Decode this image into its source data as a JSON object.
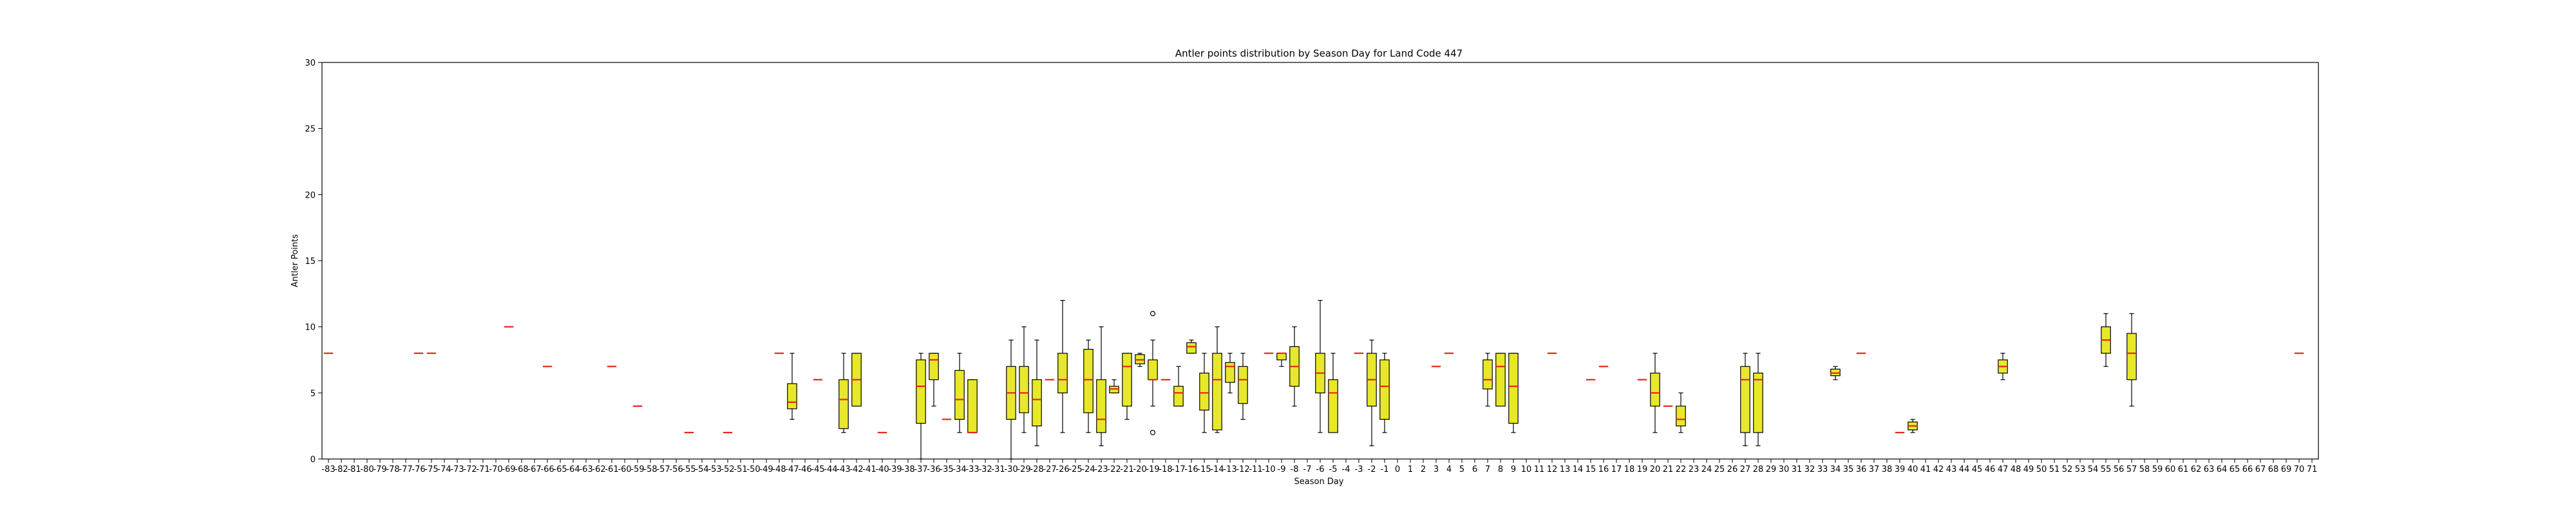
{
  "chart_data": {
    "type": "box",
    "title": "Antler points distribution by Season Day for Land Code 447",
    "xlabel": "Season Day",
    "ylabel": "Antler Points",
    "ylim": [
      0,
      30
    ],
    "yticks": [
      0,
      5,
      10,
      15,
      20,
      25,
      30
    ],
    "xmin": -83,
    "xmax": 71,
    "grid": false,
    "colors": {
      "box_fill": "#e8e82a",
      "median": "#e8251b",
      "edge": "#000000"
    },
    "boxes": [
      {
        "day": -83,
        "q1": 8,
        "med": 8,
        "q3": 8,
        "lo": 8,
        "hi": 8
      },
      {
        "day": -76,
        "q1": 8,
        "med": 8,
        "q3": 8,
        "lo": 8,
        "hi": 8
      },
      {
        "day": -75,
        "q1": 8,
        "med": 8,
        "q3": 8,
        "lo": 8,
        "hi": 8
      },
      {
        "day": -69,
        "q1": 10,
        "med": 10,
        "q3": 10,
        "lo": 10,
        "hi": 10
      },
      {
        "day": -66,
        "q1": 7,
        "med": 7,
        "q3": 7,
        "lo": 7,
        "hi": 7
      },
      {
        "day": -61,
        "q1": 7,
        "med": 7,
        "q3": 7,
        "lo": 7,
        "hi": 7
      },
      {
        "day": -59,
        "q1": 4,
        "med": 4,
        "q3": 4,
        "lo": 4,
        "hi": 4
      },
      {
        "day": -55,
        "q1": 2,
        "med": 2,
        "q3": 2,
        "lo": 2,
        "hi": 2
      },
      {
        "day": -52,
        "q1": 2,
        "med": 2,
        "q3": 2,
        "lo": 2,
        "hi": 2
      },
      {
        "day": -48,
        "q1": 8,
        "med": 8,
        "q3": 8,
        "lo": 8,
        "hi": 8
      },
      {
        "day": -47,
        "q1": 3.8,
        "med": 4.3,
        "q3": 5.7,
        "lo": 3,
        "hi": 8
      },
      {
        "day": -45,
        "q1": 6,
        "med": 6,
        "q3": 6,
        "lo": 6,
        "hi": 6
      },
      {
        "day": -43,
        "q1": 2.3,
        "med": 4.5,
        "q3": 6,
        "lo": 2,
        "hi": 8
      },
      {
        "day": -42,
        "q1": 4,
        "med": 6,
        "q3": 8,
        "lo": 4,
        "hi": 8
      },
      {
        "day": -40,
        "q1": 2,
        "med": 2,
        "q3": 2,
        "lo": 2,
        "hi": 2
      },
      {
        "day": -37,
        "q1": 2.7,
        "med": 5.5,
        "q3": 7.5,
        "lo": 0,
        "hi": 8
      },
      {
        "day": -36,
        "q1": 6,
        "med": 7.5,
        "q3": 8,
        "lo": 4,
        "hi": 8
      },
      {
        "day": -35,
        "q1": 3,
        "med": 3,
        "q3": 3,
        "lo": 3,
        "hi": 3
      },
      {
        "day": -34,
        "q1": 3,
        "med": 4.5,
        "q3": 6.7,
        "lo": 2,
        "hi": 8
      },
      {
        "day": -33,
        "q1": 2,
        "med": 2,
        "q3": 6,
        "lo": 2,
        "hi": 6
      },
      {
        "day": -30,
        "q1": 3,
        "med": 5,
        "q3": 7,
        "lo": 0,
        "hi": 9
      },
      {
        "day": -29,
        "q1": 3.5,
        "med": 5,
        "q3": 7,
        "lo": 2,
        "hi": 10
      },
      {
        "day": -28,
        "q1": 2.5,
        "med": 4.5,
        "q3": 6,
        "lo": 1,
        "hi": 9
      },
      {
        "day": -27,
        "q1": 6,
        "med": 6,
        "q3": 6,
        "lo": 6,
        "hi": 6
      },
      {
        "day": -26,
        "q1": 5,
        "med": 6,
        "q3": 8,
        "lo": 2,
        "hi": 12
      },
      {
        "day": -24,
        "q1": 3.5,
        "med": 6,
        "q3": 8.3,
        "lo": 2,
        "hi": 9
      },
      {
        "day": -23,
        "q1": 2,
        "med": 3,
        "q3": 6,
        "lo": 1,
        "hi": 10
      },
      {
        "day": -22,
        "q1": 5,
        "med": 5.3,
        "q3": 5.5,
        "lo": 5,
        "hi": 6
      },
      {
        "day": -21,
        "q1": 4,
        "med": 7,
        "q3": 8,
        "lo": 3,
        "hi": 8
      },
      {
        "day": -20,
        "q1": 7.2,
        "med": 7.5,
        "q3": 7.9,
        "lo": 7,
        "hi": 8
      },
      {
        "day": -19,
        "q1": 6,
        "med": 6,
        "q3": 7.5,
        "lo": 4,
        "hi": 9,
        "fliers": [
          11,
          2
        ]
      },
      {
        "day": -18,
        "q1": 6,
        "med": 6,
        "q3": 6,
        "lo": 6,
        "hi": 6
      },
      {
        "day": -17,
        "q1": 4,
        "med": 5,
        "q3": 5.5,
        "lo": 4,
        "hi": 7
      },
      {
        "day": -16,
        "q1": 8,
        "med": 8.5,
        "q3": 8.8,
        "lo": 8,
        "hi": 9
      },
      {
        "day": -15,
        "q1": 3.7,
        "med": 5,
        "q3": 6.5,
        "lo": 2,
        "hi": 8
      },
      {
        "day": -14,
        "q1": 2.2,
        "med": 6,
        "q3": 8,
        "lo": 2,
        "hi": 10
      },
      {
        "day": -13,
        "q1": 5.8,
        "med": 7,
        "q3": 7.3,
        "lo": 5,
        "hi": 8
      },
      {
        "day": -12,
        "q1": 4.2,
        "med": 6,
        "q3": 7,
        "lo": 3,
        "hi": 8
      },
      {
        "day": -10,
        "q1": 8,
        "med": 8,
        "q3": 8,
        "lo": 8,
        "hi": 8
      },
      {
        "day": -9,
        "q1": 7.5,
        "med": 8,
        "q3": 8,
        "lo": 7,
        "hi": 8
      },
      {
        "day": -8,
        "q1": 5.5,
        "med": 7,
        "q3": 8.5,
        "lo": 4,
        "hi": 10
      },
      {
        "day": -6,
        "q1": 5,
        "med": 6.5,
        "q3": 8,
        "lo": 2,
        "hi": 12
      },
      {
        "day": -5,
        "q1": 2,
        "med": 5,
        "q3": 6,
        "lo": 2,
        "hi": 8
      },
      {
        "day": -3,
        "q1": 8,
        "med": 8,
        "q3": 8,
        "lo": 8,
        "hi": 8
      },
      {
        "day": -2,
        "q1": 4,
        "med": 6,
        "q3": 8,
        "lo": 1,
        "hi": 9
      },
      {
        "day": -1,
        "q1": 3,
        "med": 5.5,
        "q3": 7.5,
        "lo": 2,
        "hi": 8
      },
      {
        "day": 3,
        "q1": 7,
        "med": 7,
        "q3": 7,
        "lo": 7,
        "hi": 7
      },
      {
        "day": 4,
        "q1": 8,
        "med": 8,
        "q3": 8,
        "lo": 8,
        "hi": 8
      },
      {
        "day": 7,
        "q1": 5.3,
        "med": 6,
        "q3": 7.5,
        "lo": 4,
        "hi": 8
      },
      {
        "day": 8,
        "q1": 4,
        "med": 7,
        "q3": 8,
        "lo": 4,
        "hi": 8
      },
      {
        "day": 9,
        "q1": 2.7,
        "med": 5.5,
        "q3": 8,
        "lo": 2,
        "hi": 8
      },
      {
        "day": 12,
        "q1": 8,
        "med": 8,
        "q3": 8,
        "lo": 8,
        "hi": 8
      },
      {
        "day": 15,
        "q1": 6,
        "med": 6,
        "q3": 6,
        "lo": 6,
        "hi": 6
      },
      {
        "day": 16,
        "q1": 7,
        "med": 7,
        "q3": 7,
        "lo": 7,
        "hi": 7
      },
      {
        "day": 19,
        "q1": 6,
        "med": 6,
        "q3": 6,
        "lo": 6,
        "hi": 6
      },
      {
        "day": 20,
        "q1": 4,
        "med": 5,
        "q3": 6.5,
        "lo": 2,
        "hi": 8
      },
      {
        "day": 21,
        "q1": 4,
        "med": 4,
        "q3": 4,
        "lo": 4,
        "hi": 4
      },
      {
        "day": 22,
        "q1": 2.5,
        "med": 3,
        "q3": 4,
        "lo": 2,
        "hi": 5
      },
      {
        "day": 27,
        "q1": 2,
        "med": 6,
        "q3": 7,
        "lo": 1,
        "hi": 8
      },
      {
        "day": 28,
        "q1": 2,
        "med": 6,
        "q3": 6.5,
        "lo": 1,
        "hi": 8
      },
      {
        "day": 34,
        "q1": 6.3,
        "med": 6.5,
        "q3": 6.8,
        "lo": 6,
        "hi": 7
      },
      {
        "day": 36,
        "q1": 8,
        "med": 8,
        "q3": 8,
        "lo": 8,
        "hi": 8
      },
      {
        "day": 39,
        "q1": 2,
        "med": 2,
        "q3": 2,
        "lo": 2,
        "hi": 2
      },
      {
        "day": 40,
        "q1": 2.2,
        "med": 2.5,
        "q3": 2.8,
        "lo": 2,
        "hi": 3
      },
      {
        "day": 47,
        "q1": 6.5,
        "med": 7,
        "q3": 7.5,
        "lo": 6,
        "hi": 8
      },
      {
        "day": 55,
        "q1": 8,
        "med": 9,
        "q3": 10,
        "lo": 7,
        "hi": 11
      },
      {
        "day": 57,
        "q1": 6,
        "med": 8,
        "q3": 9.5,
        "lo": 4,
        "hi": 11
      },
      {
        "day": 70,
        "q1": 8,
        "med": 8,
        "q3": 8,
        "lo": 8,
        "hi": 8
      }
    ]
  }
}
